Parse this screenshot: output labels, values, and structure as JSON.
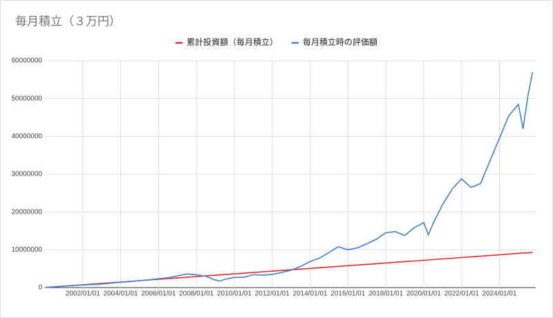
{
  "chart_data": {
    "type": "line",
    "title": "毎月積立（３万円）",
    "x": [
      "2000/01/01",
      "2000/07/01",
      "2001/01/01",
      "2001/07/01",
      "2002/01/01",
      "2002/07/01",
      "2003/01/01",
      "2003/07/01",
      "2004/01/01",
      "2004/07/01",
      "2005/01/01",
      "2005/07/01",
      "2006/01/01",
      "2006/07/01",
      "2007/01/01",
      "2007/07/01",
      "2008/01/01",
      "2008/07/01",
      "2009/01/01",
      "2009/04/01",
      "2009/07/01",
      "2010/01/01",
      "2010/07/01",
      "2011/01/01",
      "2011/07/01",
      "2012/01/01",
      "2012/07/01",
      "2013/01/01",
      "2013/07/01",
      "2014/01/01",
      "2014/07/01",
      "2015/01/01",
      "2015/07/01",
      "2016/01/01",
      "2016/07/01",
      "2017/01/01",
      "2017/07/01",
      "2018/01/01",
      "2018/07/01",
      "2019/01/01",
      "2019/07/01",
      "2020/01/01",
      "2020/04/01",
      "2020/07/01",
      "2021/01/01",
      "2021/07/01",
      "2022/01/01",
      "2022/07/01",
      "2023/01/01",
      "2023/07/01",
      "2024/01/01",
      "2024/07/01",
      "2025/01/01",
      "2025/04/01",
      "2025/07/01",
      "2025/10/01"
    ],
    "series": [
      {
        "name": "累計投資額（毎月積立）",
        "color": "#e8262a",
        "values": [
          30000,
          210000,
          390000,
          570000,
          750000,
          930000,
          1110000,
          1290000,
          1470000,
          1650000,
          1830000,
          2010000,
          2190000,
          2370000,
          2550000,
          2730000,
          2910000,
          3090000,
          3270000,
          3360000,
          3450000,
          3630000,
          3810000,
          3990000,
          4170000,
          4350000,
          4530000,
          4710000,
          4890000,
          5070000,
          5250000,
          5430000,
          5610000,
          5790000,
          5970000,
          6150000,
          6330000,
          6510000,
          6690000,
          6870000,
          7050000,
          7230000,
          7320000,
          7410000,
          7590000,
          7770000,
          7950000,
          8130000,
          8310000,
          8490000,
          8670000,
          8850000,
          9030000,
          9120000,
          9210000,
          9300000
        ]
      },
      {
        "name": "毎月積立時の評価額",
        "color": "#3d7fd6",
        "values": [
          30000,
          200000,
          380000,
          560000,
          700000,
          800000,
          950000,
          1200000,
          1400000,
          1600000,
          1850000,
          2050000,
          2350000,
          2600000,
          3100000,
          3600000,
          3400000,
          3000000,
          2000000,
          1700000,
          2200000,
          2700000,
          2700000,
          3400000,
          3300000,
          3500000,
          4000000,
          4600000,
          5600000,
          6900000,
          7800000,
          9300000,
          10800000,
          10000000,
          10500000,
          11600000,
          12800000,
          14500000,
          14800000,
          13800000,
          15800000,
          17200000,
          14000000,
          17000000,
          22000000,
          26000000,
          28800000,
          26500000,
          27500000,
          33500000,
          39500000,
          45500000,
          48500000,
          42000000,
          50500000,
          57000000
        ]
      }
    ],
    "xlim": [
      "2000/01/01",
      "2025/12/01"
    ],
    "xticks": [
      "2002/01/01",
      "2004/01/01",
      "2006/01/01",
      "2008/01/01",
      "2010/01/01",
      "2012/01/01",
      "2014/01/01",
      "2016/01/01",
      "2018/01/01",
      "2020/01/01",
      "2022/01/01",
      "2024/01/01"
    ],
    "ylim": [
      0,
      60000000
    ],
    "yticks": [
      0,
      10000000,
      20000000,
      30000000,
      40000000,
      50000000,
      60000000
    ],
    "grid": true,
    "legend": "top"
  }
}
